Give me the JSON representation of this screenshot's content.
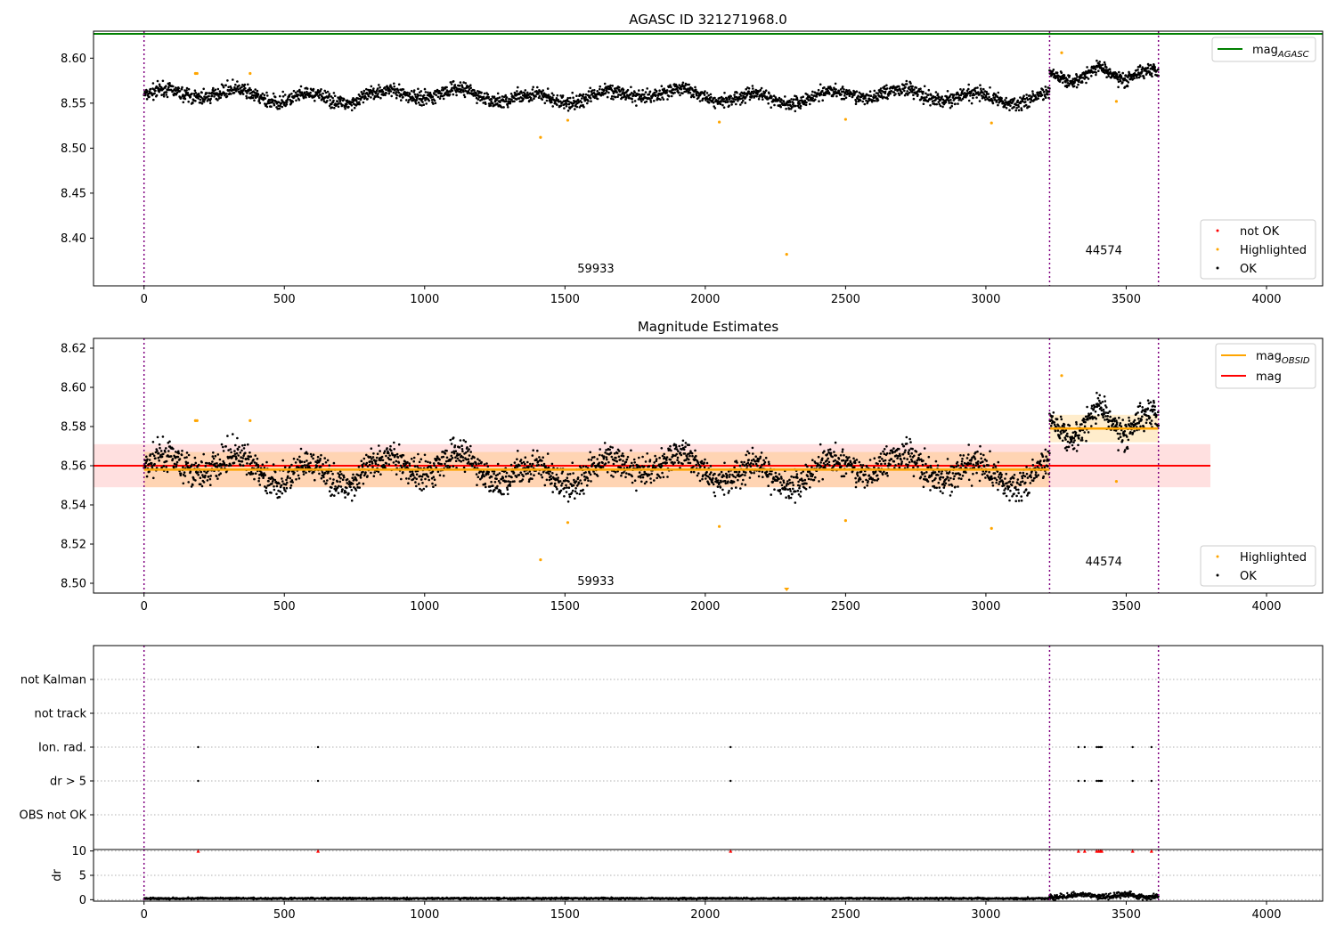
{
  "chart_data": [
    {
      "type": "scatter",
      "title": "AGASC ID 321271968.0",
      "xlabel": "",
      "ylabel": "",
      "xlim": [
        -180,
        4200
      ],
      "ylim": [
        8.347,
        8.63
      ],
      "x_ticks": [
        "0",
        "500",
        "1000",
        "1500",
        "2000",
        "2500",
        "3000",
        "3500",
        "4000"
      ],
      "y_ticks": [
        "8.40",
        "8.45",
        "8.50",
        "8.55",
        "8.60"
      ],
      "agasc_mag": 8.627,
      "obsid_boundaries": [
        0,
        3227,
        3615
      ],
      "obsid_labels": [
        {
          "text": "59933",
          "x": 1610,
          "y": 8.362
        },
        {
          "text": "44574",
          "x": 3420,
          "y": 8.382
        }
      ],
      "segments": [
        {
          "x_start": 0,
          "x_end": 3227,
          "mean": 8.558,
          "spread": 0.007,
          "drift": 0.01
        },
        {
          "x_start": 3227,
          "x_end": 3615,
          "mean": 8.579,
          "spread": 0.007,
          "drift": 0.012
        }
      ],
      "highlighted": [
        {
          "x": 183,
          "y": 8.583
        },
        {
          "x": 189,
          "y": 8.583
        },
        {
          "x": 378,
          "y": 8.583
        },
        {
          "x": 1413,
          "y": 8.512
        },
        {
          "x": 1510,
          "y": 8.531
        },
        {
          "x": 2050,
          "y": 8.529
        },
        {
          "x": 2290,
          "y": 8.382
        },
        {
          "x": 2500,
          "y": 8.532
        },
        {
          "x": 3020,
          "y": 8.528
        },
        {
          "x": 3270,
          "y": 8.606
        },
        {
          "x": 3465,
          "y": 8.552
        }
      ],
      "legend_lines": [
        {
          "label": "mag",
          "sub": "AGASC",
          "color": "#008000"
        }
      ],
      "legend_points": [
        {
          "label": "not OK",
          "color": "#ff0000"
        },
        {
          "label": "Highlighted",
          "color": "#ffa500"
        },
        {
          "label": "OK",
          "color": "#000000"
        }
      ],
      "legend_line_position": "top-right",
      "legend_points_position": "lower-right",
      "grid": false
    },
    {
      "type": "scatter",
      "title": "Magnitude Estimates",
      "xlabel": "",
      "ylabel": "",
      "xlim": [
        -180,
        4200
      ],
      "ylim": [
        8.495,
        8.625
      ],
      "x_ticks": [
        "0",
        "500",
        "1000",
        "1500",
        "2000",
        "2500",
        "3000",
        "3500",
        "4000"
      ],
      "y_ticks": [
        "8.50",
        "8.52",
        "8.54",
        "8.56",
        "8.58",
        "8.60",
        "8.62"
      ],
      "mag": 8.56,
      "mag_band_outer": [
        8.549,
        8.571
      ],
      "mag_band_inner": [
        8.5495,
        8.5665
      ],
      "obsid_mag": [
        {
          "x_start": 0,
          "x_end": 3227,
          "value": 8.558,
          "band": [
            8.549,
            8.567
          ]
        },
        {
          "x_start": 3227,
          "x_end": 3615,
          "value": 8.579,
          "band": [
            8.572,
            8.586
          ]
        }
      ],
      "band_x_end": 3800,
      "obsid_boundaries": [
        0,
        3227,
        3615
      ],
      "obsid_labels": [
        {
          "text": "59933",
          "x": 1610,
          "y": 8.499
        },
        {
          "text": "44574",
          "x": 3420,
          "y": 8.509
        }
      ],
      "highlighted": [
        {
          "x": 183,
          "y": 8.583
        },
        {
          "x": 189,
          "y": 8.583
        },
        {
          "x": 378,
          "y": 8.583
        },
        {
          "x": 1413,
          "y": 8.512
        },
        {
          "x": 1510,
          "y": 8.531
        },
        {
          "x": 2050,
          "y": 8.529
        },
        {
          "x": 2290,
          "y": 8.496
        },
        {
          "x": 2500,
          "y": 8.532
        },
        {
          "x": 3020,
          "y": 8.528
        },
        {
          "x": 3270,
          "y": 8.606
        },
        {
          "x": 3465,
          "y": 8.552
        }
      ],
      "legend_lines": [
        {
          "label": "mag",
          "sub": "OBSID",
          "color": "#ffa500"
        },
        {
          "label": "mag",
          "sub": "",
          "color": "#ff0000"
        }
      ],
      "legend_points": [
        {
          "label": "Highlighted",
          "color": "#ffa500"
        },
        {
          "label": "OK",
          "color": "#000000"
        }
      ],
      "legend_line_position": "top-right",
      "legend_points_position": "lower-right",
      "grid": false
    },
    {
      "type": "scatter",
      "title": "",
      "xlabel": "",
      "ylabel": "",
      "xlim": [
        -180,
        4200
      ],
      "categories": [
        "not Kalman",
        "not track",
        "Ion. rad.",
        "dr > 5",
        "OBS not OK"
      ],
      "flag_points": {
        "Ion. rad.": [
          193,
          620,
          2090,
          3330,
          3352,
          3395,
          3402,
          3408,
          3413,
          3523,
          3590
        ],
        "dr > 5": [
          193,
          620,
          2090,
          3330,
          3352,
          3395,
          3402,
          3408,
          3413,
          3523,
          3590
        ]
      },
      "obsid_boundaries": [
        0,
        3227,
        3615
      ],
      "grid": "horizontal dotted"
    },
    {
      "type": "scatter",
      "title": "",
      "xlabel": "",
      "ylabel": "dr",
      "xlim": [
        -180,
        4200
      ],
      "ylim": [
        -0.3,
        10.3
      ],
      "x_ticks": [
        "0",
        "500",
        "1000",
        "1500",
        "2000",
        "2500",
        "3000",
        "3500",
        "4000"
      ],
      "y_ticks": [
        "0",
        "5",
        "10"
      ],
      "clipped_markers": [
        193,
        620,
        2090,
        3330,
        3352,
        3395,
        3402,
        3408,
        3413,
        3523,
        3590
      ],
      "clipped_value": 10,
      "dr_typical": {
        "first": 0.25,
        "second": 0.8
      },
      "obsid_boundaries": [
        0,
        3227,
        3615
      ],
      "grid": "horizontal dotted"
    }
  ],
  "colors": {
    "ok": "#000000",
    "highlighted": "#ffa500",
    "not_ok": "#ff0000",
    "agasc": "#008000",
    "mag": "#ff0000",
    "obsid_mag": "#ffa500",
    "boundary": "#800080"
  }
}
